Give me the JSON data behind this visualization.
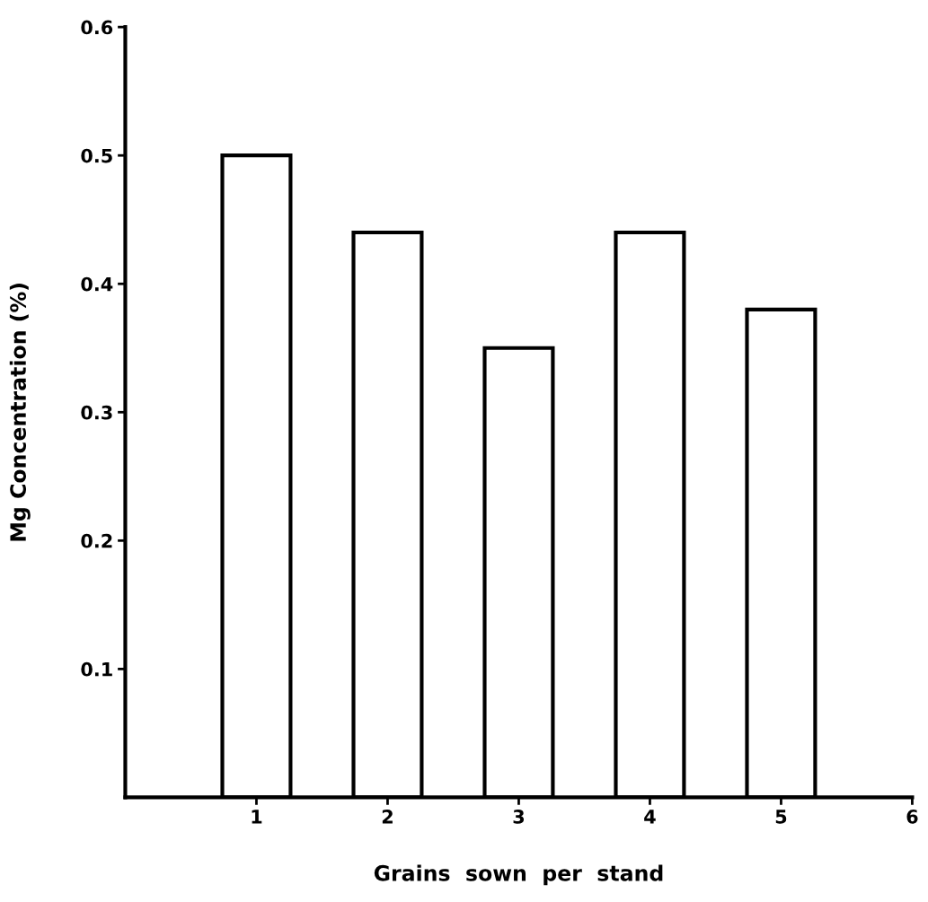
{
  "chart_data": {
    "type": "bar",
    "xlabel": "Grains  sown  per  stand",
    "ylabel": "Mg Concentration (%)",
    "x": [
      1,
      2,
      3,
      4,
      5
    ],
    "values": [
      0.5,
      0.44,
      0.35,
      0.44,
      0.38
    ],
    "color": "#ffffff",
    "xlim": [
      0,
      6
    ],
    "xticks": [
      1,
      2,
      3,
      4,
      5,
      6
    ],
    "ylim": [
      0,
      0.6
    ],
    "yticks": [
      0.1,
      0.2,
      0.3,
      0.4,
      0.5,
      0.6
    ],
    "grid": false,
    "legend": false
  }
}
